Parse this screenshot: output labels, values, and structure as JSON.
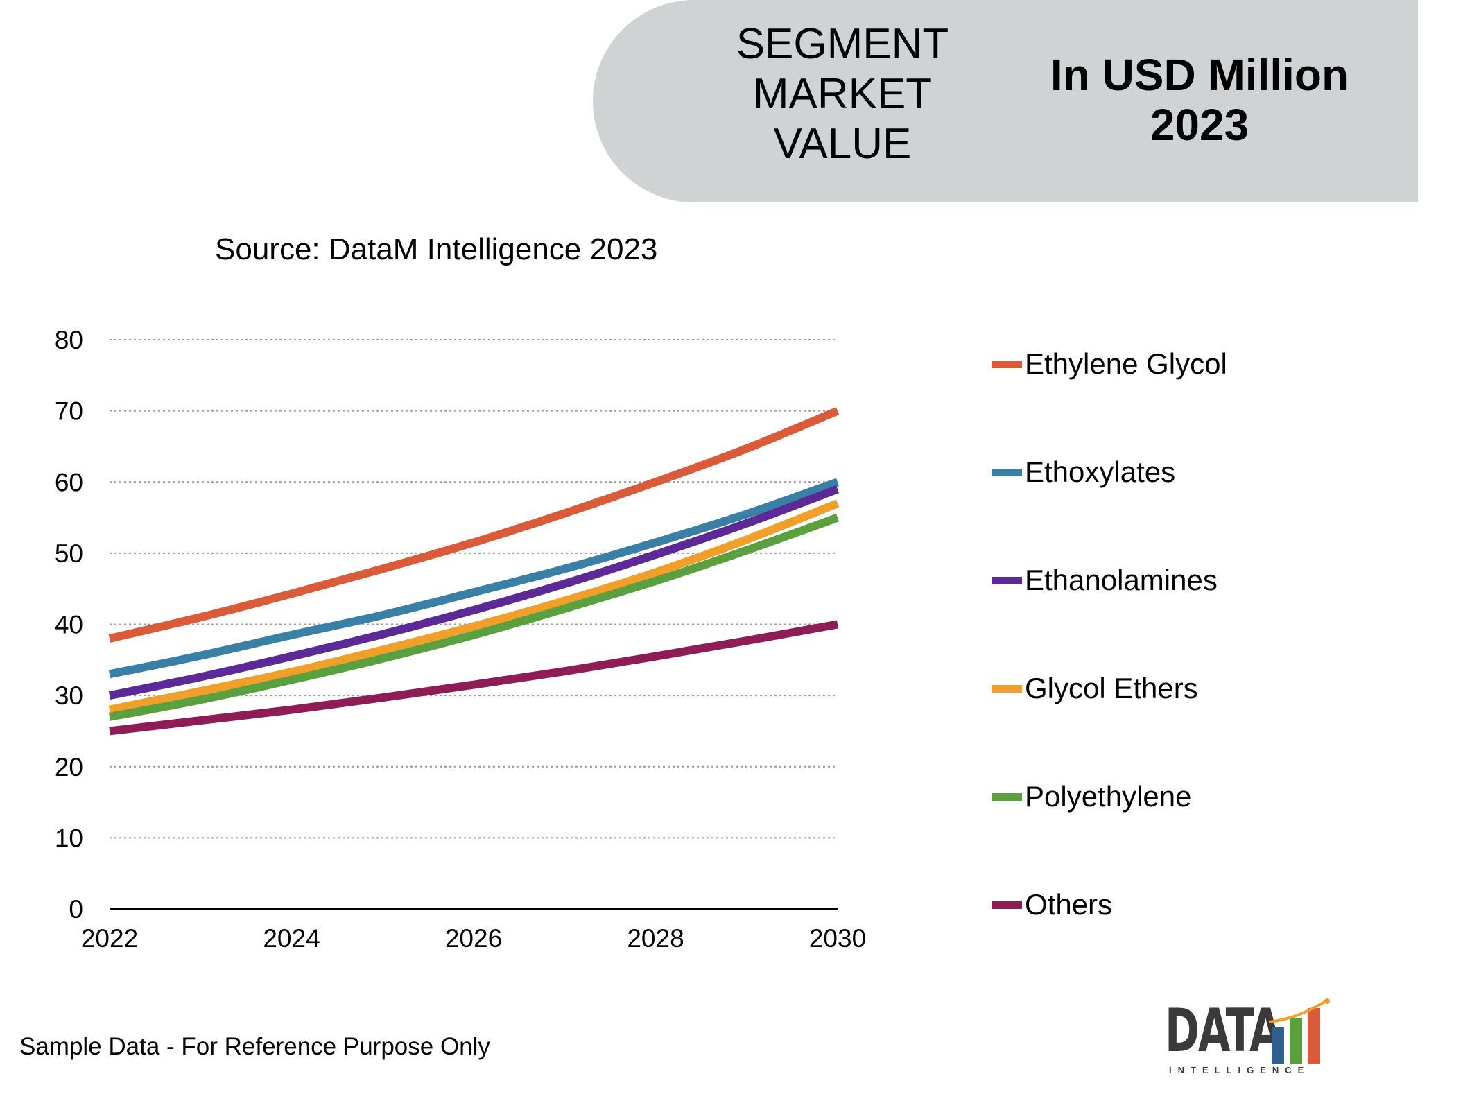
{
  "header": {
    "left_lines": [
      "SEGMENT",
      "MARKET",
      "VALUE"
    ],
    "right_lines": [
      "In USD Million",
      "2023"
    ]
  },
  "source": "Source: DataM Intelligence 2023",
  "footer_note": "Sample Data - For Reference Purpose Only",
  "logo": {
    "text": "DATA",
    "sub": "INTELLIGENCE"
  },
  "colors": {
    "ethylene_glycol": "#d95b3a",
    "ethoxylates": "#3a7fa6",
    "ethanolamines": "#5c2a96",
    "glycol_ethers": "#f0a02a",
    "polyethylene": "#5ba03e",
    "others": "#8f1d55",
    "grid": "#999999",
    "banner": "#d0d3d4"
  },
  "chart_data": {
    "type": "line",
    "x": [
      2022,
      2023,
      2024,
      2025,
      2026,
      2027,
      2028,
      2029,
      2030
    ],
    "x_ticks": [
      2022,
      2024,
      2026,
      2028,
      2030
    ],
    "y_ticks": [
      0,
      10,
      20,
      30,
      40,
      50,
      60,
      70,
      80
    ],
    "ylim": [
      0,
      80
    ],
    "xlim": [
      2022,
      2030
    ],
    "grid": true,
    "legend_position": "right",
    "series": [
      {
        "name": "Ethylene Glycol",
        "color_key": "ethylene_glycol",
        "values": [
          38,
          41,
          44.3,
          47.8,
          51.5,
          55.6,
          60,
          64.7,
          70
        ]
      },
      {
        "name": "Ethoxylates",
        "color_key": "ethoxylates",
        "values": [
          33,
          35.6,
          38.5,
          41.3,
          44.5,
          47.8,
          51.5,
          55.5,
          60
        ]
      },
      {
        "name": "Ethanolamines",
        "color_key": "ethanolamines",
        "values": [
          30,
          32.6,
          35.5,
          38.6,
          42,
          45.7,
          49.8,
          54.2,
          59
        ]
      },
      {
        "name": "Glycol Ethers",
        "color_key": "glycol_ethers",
        "values": [
          28,
          30.6,
          33.3,
          36.4,
          39.7,
          43.3,
          47.3,
          51.9,
          57
        ]
      },
      {
        "name": "Polyethylene",
        "color_key": "polyethylene",
        "values": [
          27,
          29.4,
          32.2,
          35.2,
          38.5,
          42.2,
          46.1,
          50.4,
          55
        ]
      },
      {
        "name": "Others",
        "color_key": "others",
        "values": [
          25,
          26.5,
          28,
          29.7,
          31.5,
          33.4,
          35.5,
          37.7,
          40
        ]
      }
    ]
  }
}
